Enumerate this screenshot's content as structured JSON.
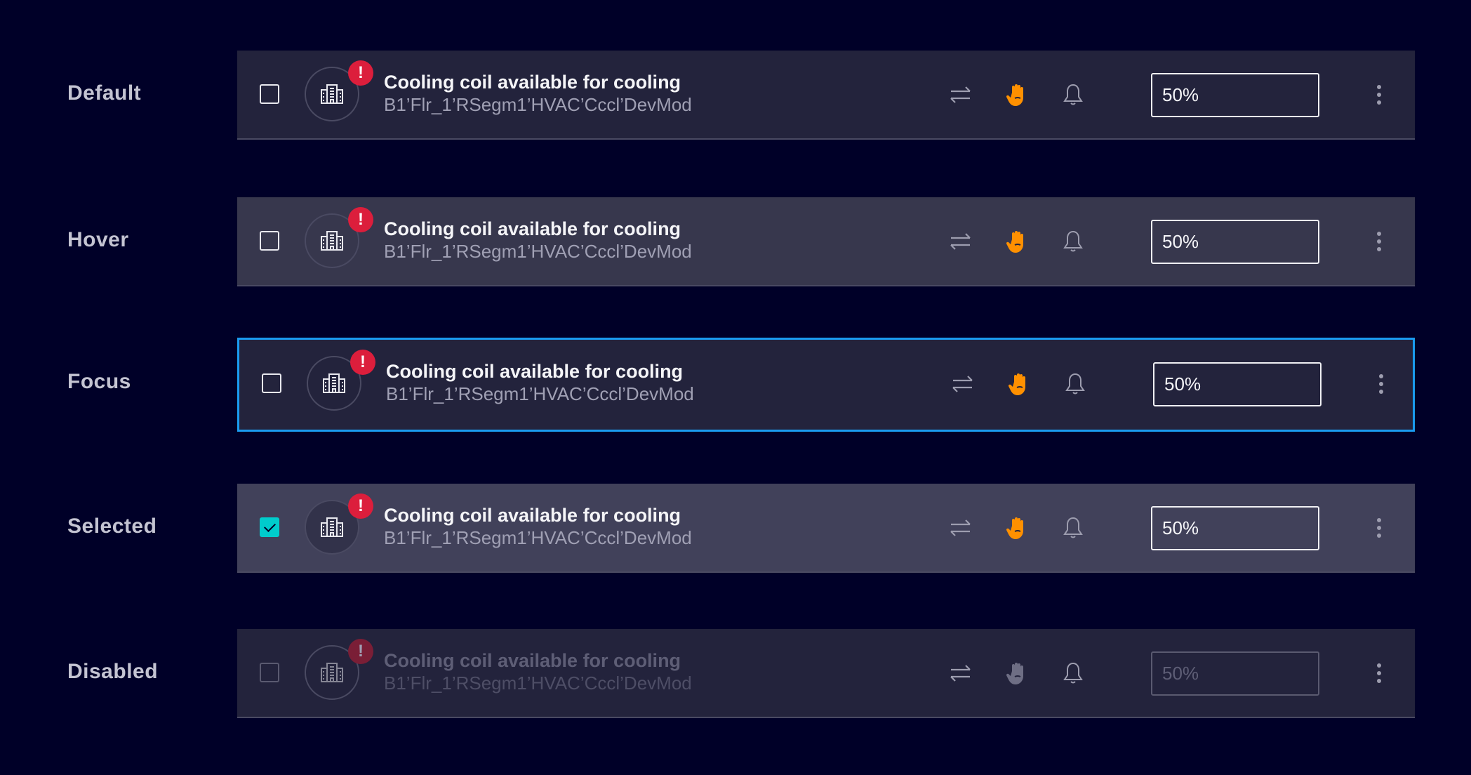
{
  "colors": {
    "background": "#000028",
    "row_default": "#23233c",
    "row_hover": "#37374d",
    "row_selected": "#41415a",
    "focus_border": "#1a9bf0",
    "checkbox_checked": "#00cccc",
    "alarm_badge": "#dc1e3c",
    "hand_active": "#ff9000"
  },
  "rows": [
    {
      "state_label": "Default",
      "title": "Cooling coil available for cooling",
      "subtitle": "B1’Flr_1’RSegm1’HVAC’Cccl’DevMod",
      "value": "50%",
      "checked": false,
      "badge": "!",
      "icons": [
        "swap-icon",
        "hand-icon",
        "bell-icon",
        "more-vertical-icon"
      ]
    },
    {
      "state_label": "Hover",
      "title": "Cooling coil available for cooling",
      "subtitle": "B1’Flr_1’RSegm1’HVAC’Cccl’DevMod",
      "value": "50%",
      "checked": false,
      "badge": "!"
    },
    {
      "state_label": "Focus",
      "title": "Cooling coil available for cooling",
      "subtitle": "B1’Flr_1’RSegm1’HVAC’Cccl’DevMod",
      "value": "50%",
      "checked": false,
      "badge": "!"
    },
    {
      "state_label": "Selected",
      "title": "Cooling coil available for cooling",
      "subtitle": "B1’Flr_1’RSegm1’HVAC’Cccl’DevMod",
      "value": "50%",
      "checked": true,
      "badge": "!"
    },
    {
      "state_label": "Disabled",
      "title": "Cooling coil available for cooling",
      "subtitle": "B1’Flr_1’RSegm1’HVAC’Cccl’DevMod",
      "value": "50%",
      "checked": false,
      "badge": "!"
    }
  ]
}
